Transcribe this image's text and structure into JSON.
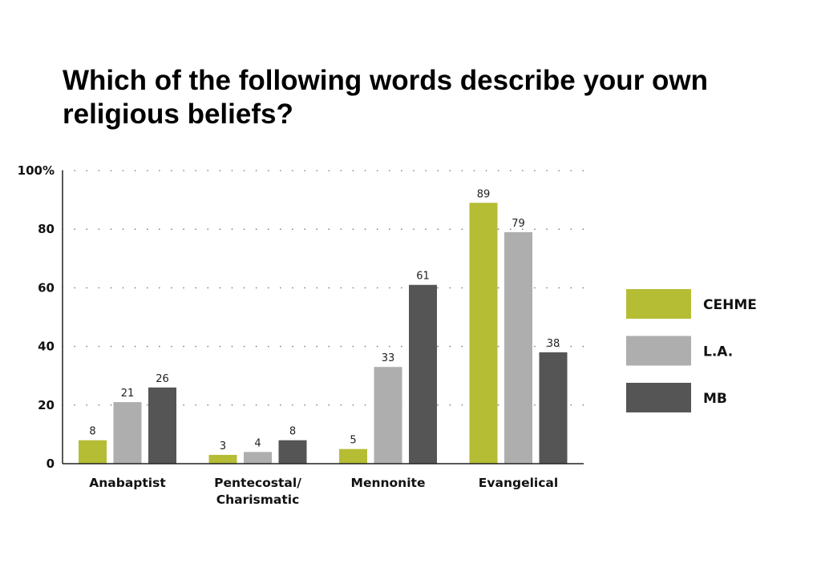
{
  "chart_data": {
    "type": "bar",
    "title": "Which of the following words describe your own religious beliefs?",
    "categories": [
      "Anabaptist",
      "Pentecostal/ Charismatic",
      "Mennonite",
      "Evangelical"
    ],
    "category_lines": [
      [
        "Anabaptist"
      ],
      [
        "Pentecostal/",
        "Charismatic"
      ],
      [
        "Mennonite"
      ],
      [
        "Evangelical"
      ]
    ],
    "series": [
      {
        "name": "CEHME",
        "color": "#b5bd34",
        "values": [
          8,
          3,
          5,
          89
        ]
      },
      {
        "name": "L.A.",
        "color": "#aeaeae",
        "values": [
          21,
          4,
          33,
          79
        ]
      },
      {
        "name": "MB",
        "color": "#555555",
        "values": [
          26,
          8,
          61,
          38
        ]
      }
    ],
    "y_ticks": [
      "0",
      "20",
      "40",
      "60",
      "80",
      "100%"
    ],
    "ylim": [
      0,
      100
    ],
    "grid": "dotted horizontal",
    "legend_position": "right"
  }
}
